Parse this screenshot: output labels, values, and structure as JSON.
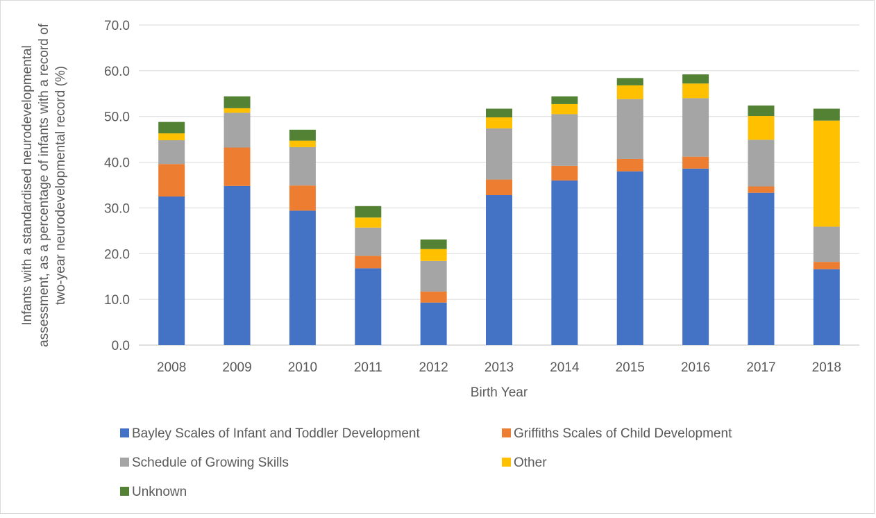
{
  "chart_data": {
    "type": "bar",
    "stacked": true,
    "title": "",
    "xlabel": "Birth Year",
    "ylabel_lines": [
      "Infants with a standardised neurodevelopmental",
      "assessment, as a percentage of infants with a record of",
      "two-year neurodevelopmental record (%)"
    ],
    "ylim": [
      0,
      70
    ],
    "y_ticks": [
      "0.0",
      "10.0",
      "20.0",
      "30.0",
      "40.0",
      "50.0",
      "60.0",
      "70.0"
    ],
    "grid": true,
    "legend_position": "bottom",
    "categories": [
      "2008",
      "2009",
      "2010",
      "2011",
      "2012",
      "2013",
      "2014",
      "2015",
      "2016",
      "2017",
      "2018"
    ],
    "series": [
      {
        "name": "Bayley Scales of Infant and Toddler Development",
        "color": "#4472c4",
        "values": [
          32.5,
          34.8,
          29.4,
          16.8,
          9.3,
          32.8,
          36.0,
          38.0,
          38.6,
          33.3,
          16.6
        ]
      },
      {
        "name": "Griffiths Scales of Child Development",
        "color": "#ed7d31",
        "values": [
          7.1,
          8.4,
          5.5,
          2.7,
          2.4,
          3.4,
          3.2,
          2.7,
          2.6,
          1.4,
          1.6
        ]
      },
      {
        "name": "Schedule of Growing Skills",
        "color": "#a5a5a5",
        "values": [
          5.2,
          7.6,
          8.4,
          6.2,
          6.7,
          11.2,
          11.3,
          13.1,
          12.8,
          10.2,
          7.7
        ]
      },
      {
        "name": "Other",
        "color": "#ffc000",
        "values": [
          1.5,
          1.0,
          1.4,
          2.2,
          2.6,
          2.4,
          2.2,
          3.0,
          3.2,
          5.2,
          23.2
        ]
      },
      {
        "name": "Unknown",
        "color": "#548235",
        "values": [
          2.5,
          2.6,
          2.4,
          2.5,
          2.1,
          1.9,
          1.7,
          1.6,
          2.0,
          2.3,
          2.6
        ]
      }
    ]
  }
}
